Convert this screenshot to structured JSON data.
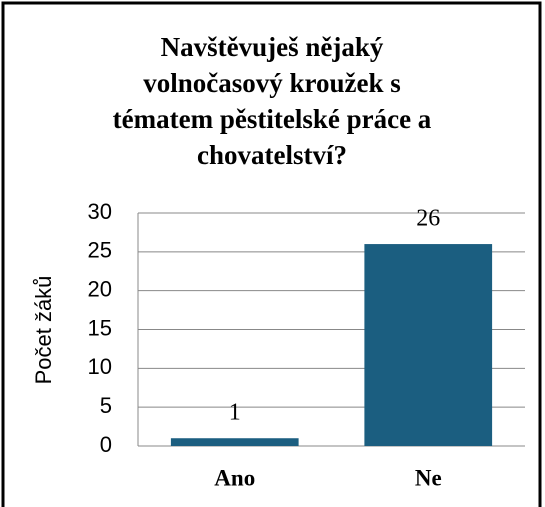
{
  "chart_data": {
    "type": "bar",
    "title": [
      "Navštěvuješ nějaký",
      "volnočasový kroužek s",
      "tématem pěstitelské práce a",
      "chovatelství?"
    ],
    "ylabel": "Počet žáků",
    "categories": [
      "Ano",
      "Ne"
    ],
    "values": [
      1,
      26
    ],
    "color": "#1b5e80",
    "ylim": [
      0,
      30
    ],
    "yticks": [
      0,
      5,
      10,
      15,
      20,
      25,
      30
    ],
    "grid": true
  }
}
